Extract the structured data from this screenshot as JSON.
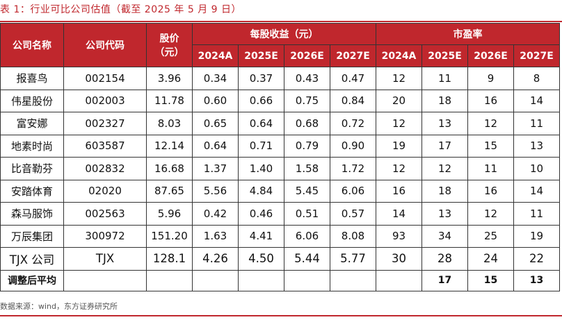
{
  "title": "表 1：行业可比公司估值（截至 2025 年 5 月 9 日）",
  "headers": {
    "company_name": "公司名称",
    "company_code": "公司代码",
    "price": "股价",
    "price_unit": "（元）",
    "eps_group": "每股收益（元）",
    "pe_group": "市盈率",
    "years": [
      "2024A",
      "2025E",
      "2026E",
      "2027E"
    ]
  },
  "rows": [
    {
      "name": "报喜鸟",
      "code": "002154",
      "price": "3.96",
      "eps": [
        "0.34",
        "0.37",
        "0.43",
        "0.47"
      ],
      "pe": [
        "12",
        "11",
        "9",
        "8"
      ]
    },
    {
      "name": "伟星股份",
      "code": "002003",
      "price": "11.78",
      "eps": [
        "0.60",
        "0.66",
        "0.75",
        "0.84"
      ],
      "pe": [
        "20",
        "18",
        "16",
        "14"
      ]
    },
    {
      "name": "富安娜",
      "code": "002327",
      "price": "8.03",
      "eps": [
        "0.65",
        "0.64",
        "0.68",
        "0.72"
      ],
      "pe": [
        "12",
        "13",
        "12",
        "11"
      ]
    },
    {
      "name": "地素时尚",
      "code": "603587",
      "price": "12.14",
      "eps": [
        "0.64",
        "0.71",
        "0.79",
        "0.90"
      ],
      "pe": [
        "19",
        "17",
        "15",
        "13"
      ]
    },
    {
      "name": "比音勒芬",
      "code": "002832",
      "price": "16.68",
      "eps": [
        "1.37",
        "1.40",
        "1.58",
        "1.72"
      ],
      "pe": [
        "12",
        "12",
        "11",
        "10"
      ]
    },
    {
      "name": "安踏体育",
      "code": "02020",
      "price": "87.65",
      "eps": [
        "5.56",
        "4.84",
        "5.45",
        "6.06"
      ],
      "pe": [
        "16",
        "18",
        "16",
        "14"
      ]
    },
    {
      "name": "森马服饰",
      "code": "002563",
      "price": "5.96",
      "eps": [
        "0.42",
        "0.46",
        "0.51",
        "0.57"
      ],
      "pe": [
        "14",
        "13",
        "12",
        "11"
      ]
    },
    {
      "name": "万辰集团",
      "code": "300972",
      "price": "151.20",
      "eps": [
        "1.63",
        "4.41",
        "6.06",
        "8.08"
      ],
      "pe": [
        "93",
        "34",
        "25",
        "19"
      ]
    },
    {
      "name": "TJX 公司",
      "code": "TJX",
      "price": "128.1",
      "eps": [
        "4.26",
        "4.50",
        "5.44",
        "5.77"
      ],
      "pe": [
        "30",
        "28",
        "24",
        "22"
      ]
    }
  ],
  "average": {
    "label": "调整后平均",
    "pe": [
      "",
      "17",
      "15",
      "13"
    ]
  },
  "source": "数据来源：wind，东方证券研究所",
  "colors": {
    "accent": "#c0272d"
  }
}
